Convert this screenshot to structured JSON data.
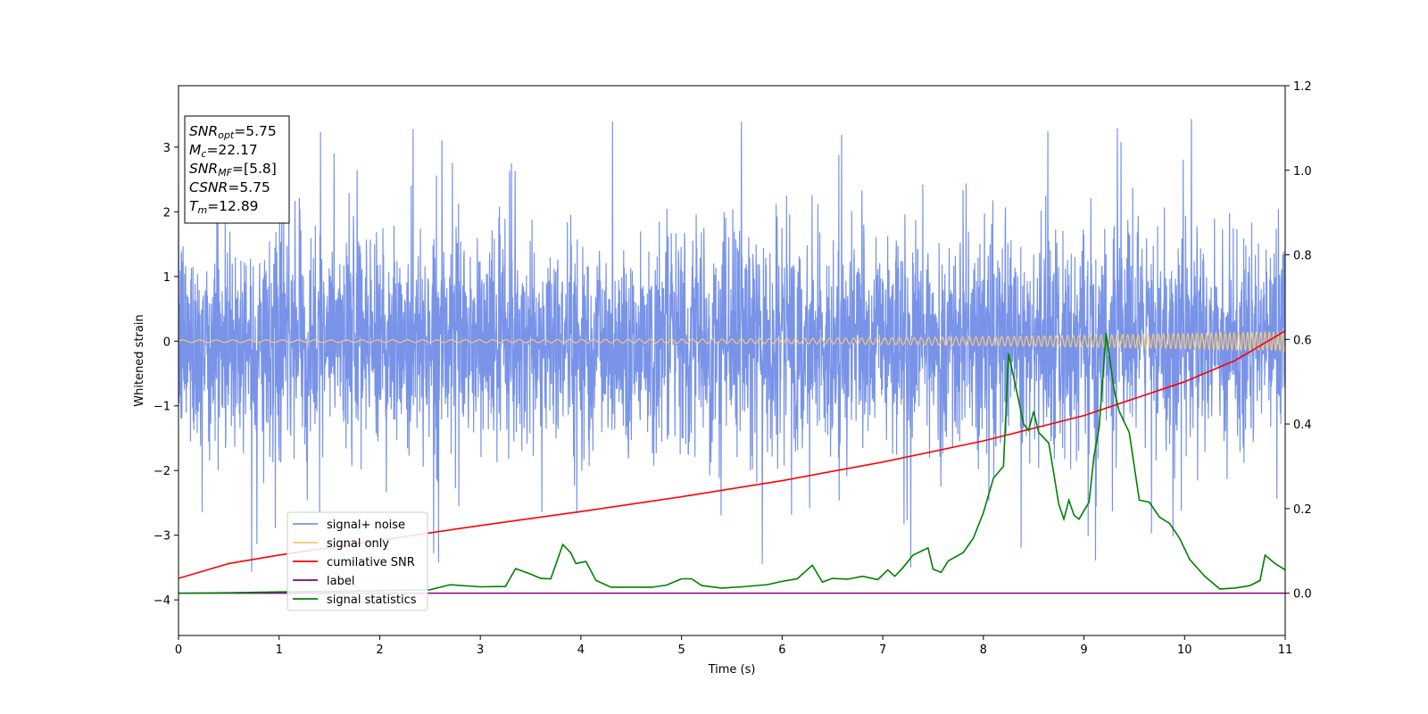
{
  "chart_data": {
    "type": "line",
    "xlabel": "Time (s)",
    "ylabel": "Whitened strain",
    "xlim": [
      0,
      11
    ],
    "ylim": [
      -4.55,
      3.95
    ],
    "y2lim": [
      -0.1,
      1.2
    ],
    "xticks": [
      "0",
      "1",
      "2",
      "3",
      "4",
      "5",
      "6",
      "7",
      "8",
      "9",
      "10",
      "11"
    ],
    "yticks": [
      "−4",
      "−3",
      "−2",
      "−1",
      "0",
      "1",
      "2",
      "3"
    ],
    "y2ticks": [
      "0.0",
      "0.2",
      "0.4",
      "0.6",
      "0.8",
      "1.0",
      "1.2"
    ],
    "legend_position": "lower-left",
    "grid": false,
    "annotation": [
      {
        "main": "SNR",
        "sub": "opt",
        "value": "=5.75"
      },
      {
        "main": "M",
        "sub": "c",
        "value": "=22.17"
      },
      {
        "main": "SNR",
        "sub": "MF",
        "value": "=[5.8]"
      },
      {
        "main": "CSNR",
        "sub": "",
        "value": "=5.75"
      },
      {
        "main": "T",
        "sub": "m",
        "value": "=12.89"
      }
    ],
    "series": [
      {
        "name": "signal+ noise",
        "color": "#7893e8",
        "axis": "left",
        "description_values": {
          "mean": 0,
          "std": 0.85,
          "min": -4.2,
          "max": 3.6
        }
      },
      {
        "name": "signal only",
        "color": "#f5c87a",
        "axis": "left",
        "amplitude_start": 0.02,
        "amplitude_end": 0.15
      },
      {
        "name": "cumilative SNR",
        "color": "#ff0000",
        "axis": "right",
        "x": [
          0,
          0.5,
          1,
          2,
          3,
          4,
          5,
          6,
          7,
          8,
          9,
          10,
          10.5,
          11
        ],
        "y": [
          0.035,
          0.07,
          0.09,
          0.125,
          0.16,
          0.193,
          0.228,
          0.266,
          0.31,
          0.36,
          0.42,
          0.5,
          0.55,
          0.62
        ]
      },
      {
        "name": "label",
        "color": "#800080",
        "axis": "right",
        "x": [
          0,
          11
        ],
        "y": [
          0,
          0
        ]
      },
      {
        "name": "signal statistics",
        "color": "#008000",
        "axis": "right",
        "x": [
          0,
          0.5,
          1,
          1.5,
          2,
          2.5,
          2.7,
          3,
          3.25,
          3.35,
          3.5,
          3.6,
          3.7,
          3.82,
          3.9,
          3.95,
          4.05,
          4.15,
          4.3,
          4.5,
          4.7,
          4.85,
          5,
          5.1,
          5.2,
          5.4,
          5.6,
          5.85,
          6,
          6.15,
          6.3,
          6.4,
          6.5,
          6.65,
          6.8,
          6.95,
          7.05,
          7.12,
          7.2,
          7.3,
          7.45,
          7.5,
          7.58,
          7.65,
          7.8,
          7.9,
          8.0,
          8.1,
          8.2,
          8.25,
          8.32,
          8.4,
          8.45,
          8.5,
          8.55,
          8.65,
          8.75,
          8.8,
          8.85,
          8.9,
          8.95,
          9.0,
          9.05,
          9.1,
          9.15,
          9.22,
          9.3,
          9.35,
          9.45,
          9.55,
          9.65,
          9.75,
          9.85,
          9.95,
          10.05,
          10.2,
          10.35,
          10.5,
          10.65,
          10.75,
          10.8,
          10.9,
          11
        ],
        "y": [
          0,
          0.001,
          0.003,
          0.004,
          0.006,
          0.008,
          0.02,
          0.015,
          0.016,
          0.058,
          0.045,
          0.035,
          0.034,
          0.115,
          0.095,
          0.07,
          0.075,
          0.03,
          0.014,
          0.014,
          0.014,
          0.019,
          0.034,
          0.034,
          0.018,
          0.012,
          0.015,
          0.02,
          0.028,
          0.034,
          0.066,
          0.026,
          0.035,
          0.033,
          0.04,
          0.032,
          0.055,
          0.04,
          0.06,
          0.09,
          0.107,
          0.057,
          0.049,
          0.076,
          0.096,
          0.13,
          0.19,
          0.272,
          0.3,
          0.567,
          0.49,
          0.4,
          0.385,
          0.43,
          0.38,
          0.355,
          0.21,
          0.175,
          0.22,
          0.185,
          0.175,
          0.195,
          0.215,
          0.325,
          0.39,
          0.615,
          0.48,
          0.43,
          0.38,
          0.22,
          0.215,
          0.18,
          0.165,
          0.13,
          0.08,
          0.04,
          0.01,
          0.012,
          0.018,
          0.03,
          0.09,
          0.07,
          0.055
        ]
      }
    ]
  }
}
